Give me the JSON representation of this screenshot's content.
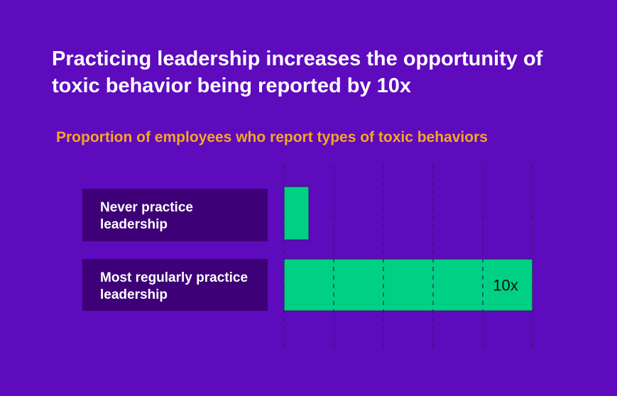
{
  "title": "Practicing leadership increases the opportunity of toxic behavior being reported by 10x",
  "subtitle": "Proportion of employees who report types of toxic behaviors",
  "colors": {
    "background": "#5d0bbd",
    "label_box": "#3d0076",
    "bar": "#00d084",
    "subtitle": "#f5a623",
    "gridline": "#3a1a5e"
  },
  "chart_data": {
    "type": "bar",
    "orientation": "horizontal",
    "categories": [
      "Never practice leadership",
      "Most regularly practice leadership"
    ],
    "category_lines": [
      [
        "Never practice",
        "leadership"
      ],
      [
        "Most regularly practice",
        "leadership"
      ]
    ],
    "values": [
      1,
      10
    ],
    "data_labels": [
      "",
      "10x"
    ],
    "xlim": [
      0,
      10
    ],
    "grid": "vertical dashed",
    "title": "Proportion of employees who report types of toxic behaviors"
  }
}
